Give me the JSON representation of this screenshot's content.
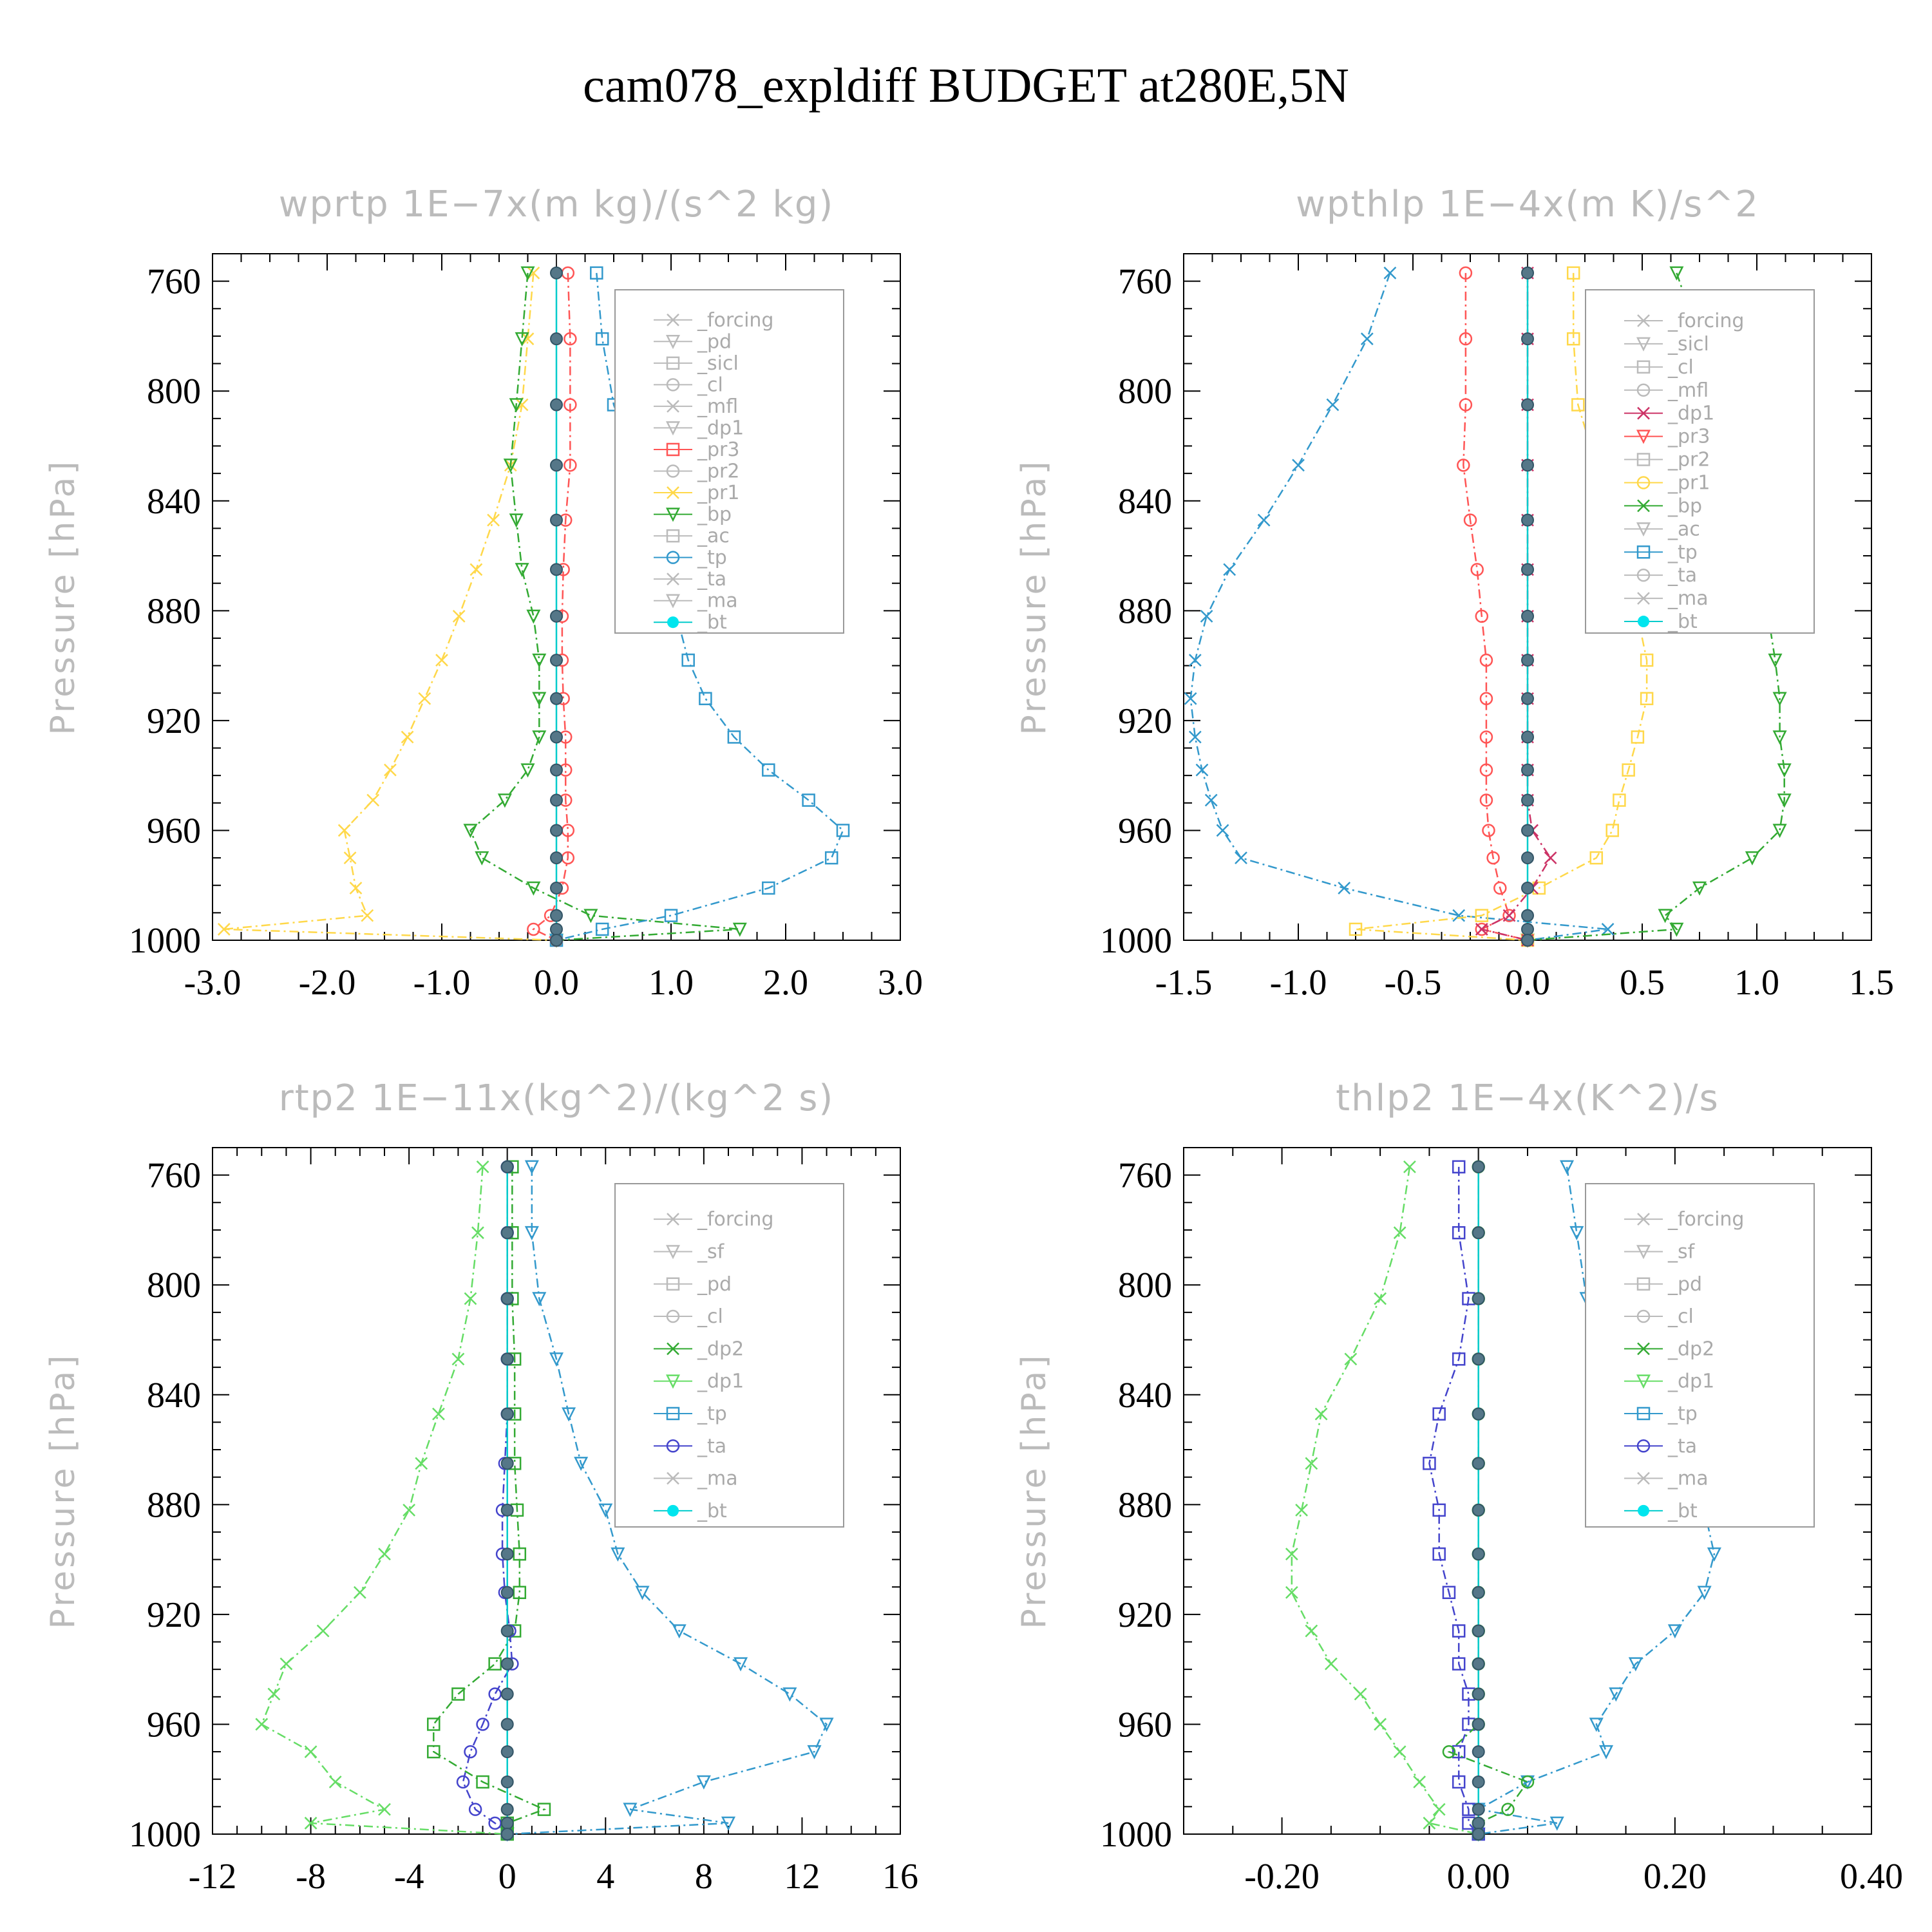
{
  "title": "cam078_expldiff  BUDGET at280E,5N",
  "chart_data": [
    {
      "type": "line",
      "title": "wprtp  1E−7x(m kg)/(s^2 kg)",
      "ylabel": "Pressure [hPa]",
      "xlim": [
        -3.0,
        3.0
      ],
      "ylim": [
        1000,
        750
      ],
      "xticks": [
        "-3.0",
        "-2.0",
        "-1.0",
        "0.0",
        "1.0",
        "2.0",
        "3.0"
      ],
      "yticks": [
        "760",
        "800",
        "840",
        "880",
        "920",
        "960",
        "1000"
      ],
      "levels": [
        757,
        781,
        805,
        827,
        847,
        865,
        882,
        898,
        912,
        926,
        938,
        949,
        960,
        970,
        981,
        991,
        996,
        1000
      ],
      "legend_names": [
        "_forcing",
        "_pd",
        "_sicl",
        "_cl",
        "_mfl",
        "_dp1",
        "_pr3",
        "_pr2",
        "_pr1",
        "_bp",
        "_ac",
        "_tp",
        "_ta",
        "_ma",
        "_bt"
      ],
      "series": [
        {
          "name": "_pr1",
          "color": "#ffd84a",
          "values": [
            -0.2,
            -0.25,
            -0.3,
            -0.4,
            -0.55,
            -0.7,
            -0.85,
            -1.0,
            -1.15,
            -1.3,
            -1.45,
            -1.6,
            -1.85,
            -1.8,
            -1.75,
            -1.65,
            -2.9,
            0.0
          ]
        },
        {
          "name": "_bp",
          "color": "#33aa33",
          "values": [
            -0.25,
            -0.3,
            -0.35,
            -0.4,
            -0.35,
            -0.3,
            -0.2,
            -0.15,
            -0.15,
            -0.15,
            -0.25,
            -0.45,
            -0.75,
            -0.65,
            -0.2,
            0.3,
            1.6,
            0.0
          ]
        },
        {
          "name": "_tp",
          "color": "#3399cc",
          "values": [
            0.35,
            0.4,
            0.5,
            0.7,
            0.85,
            1.0,
            1.05,
            1.15,
            1.3,
            1.55,
            1.85,
            2.2,
            2.5,
            2.4,
            1.85,
            1.0,
            0.4,
            0.0
          ]
        },
        {
          "name": "_pr3",
          "color": "#ff5555",
          "values": [
            0.1,
            0.12,
            0.12,
            0.12,
            0.08,
            0.06,
            0.05,
            0.05,
            0.06,
            0.08,
            0.08,
            0.08,
            0.1,
            0.1,
            0.05,
            -0.05,
            -0.2,
            0.0
          ]
        },
        {
          "name": "_bt",
          "color": "#00cccc",
          "values": [
            0,
            0,
            0,
            0,
            0,
            0,
            0,
            0,
            0,
            0,
            0,
            0,
            0,
            0,
            0,
            0,
            0,
            0
          ]
        }
      ]
    },
    {
      "type": "line",
      "title": "wpthlp  1E−4x(m K)/s^2",
      "ylabel": "Pressure [hPa]",
      "xlim": [
        -1.5,
        1.5
      ],
      "ylim": [
        1000,
        750
      ],
      "xticks": [
        "-1.5",
        "-1.0",
        "-0.5",
        "0.0",
        "0.5",
        "1.0",
        "1.5"
      ],
      "yticks": [
        "760",
        "800",
        "840",
        "880",
        "920",
        "960",
        "1000"
      ],
      "levels": [
        757,
        781,
        805,
        827,
        847,
        865,
        882,
        898,
        912,
        926,
        938,
        949,
        960,
        970,
        981,
        991,
        996,
        1000
      ],
      "legend_names": [
        "_forcing",
        "_sicl",
        "_cl",
        "_mfl",
        "_dp1",
        "_pr3",
        "_pr2",
        "_pr1",
        "_bp",
        "_ac",
        "_tp",
        "_ta",
        "_ma",
        "_bt"
      ],
      "series": [
        {
          "name": "_tp",
          "color": "#3399cc",
          "values": [
            -0.6,
            -0.7,
            -0.85,
            -1.0,
            -1.15,
            -1.3,
            -1.4,
            -1.45,
            -1.47,
            -1.45,
            -1.42,
            -1.38,
            -1.33,
            -1.25,
            -0.8,
            -0.3,
            0.35,
            0.0
          ]
        },
        {
          "name": "_bp",
          "color": "#33aa33",
          "values": [
            0.65,
            0.75,
            0.85,
            0.98,
            1.03,
            1.06,
            1.05,
            1.08,
            1.1,
            1.1,
            1.12,
            1.12,
            1.1,
            0.98,
            0.75,
            0.6,
            0.65,
            0.0
          ]
        },
        {
          "name": "_pr1",
          "color": "#ffd84a",
          "values": [
            0.2,
            0.2,
            0.22,
            0.3,
            0.37,
            0.43,
            0.48,
            0.52,
            0.52,
            0.48,
            0.44,
            0.4,
            0.37,
            0.3,
            0.05,
            -0.2,
            -0.75,
            0.0
          ]
        },
        {
          "name": "_pr3",
          "color": "#ff5555",
          "values": [
            -0.27,
            -0.27,
            -0.27,
            -0.28,
            -0.25,
            -0.22,
            -0.2,
            -0.18,
            -0.18,
            -0.18,
            -0.18,
            -0.18,
            -0.17,
            -0.15,
            -0.12,
            -0.08,
            -0.2,
            0.0
          ]
        },
        {
          "name": "_dp1",
          "color": "#cc3366",
          "values": [
            0,
            0,
            0,
            0,
            0,
            0,
            0,
            0,
            0,
            0,
            0,
            0,
            0.02,
            0.1,
            0.02,
            -0.08,
            -0.2,
            0.0
          ]
        },
        {
          "name": "_bt",
          "color": "#00cccc",
          "values": [
            0,
            0,
            0,
            0,
            0,
            0,
            0,
            0,
            0,
            0,
            0,
            0,
            0,
            0,
            0,
            0,
            0,
            0
          ]
        }
      ]
    },
    {
      "type": "line",
      "title": "rtp2  1E−11x(kg^2)/(kg^2 s)",
      "ylabel": "Pressure [hPa]",
      "xlim": [
        -12,
        16
      ],
      "ylim": [
        1000,
        750
      ],
      "xticks": [
        "-12",
        "-8",
        "-4",
        "0",
        "4",
        "8",
        "12",
        "16"
      ],
      "yticks": [
        "760",
        "800",
        "840",
        "880",
        "920",
        "960",
        "1000"
      ],
      "levels": [
        757,
        781,
        805,
        827,
        847,
        865,
        882,
        898,
        912,
        926,
        938,
        949,
        960,
        970,
        981,
        991,
        996,
        1000
      ],
      "legend_names": [
        "_forcing",
        "_sf",
        "_pd",
        "_cl",
        "_dp2",
        "_dp1",
        "_tp",
        "_ta",
        "_ma",
        "_bt"
      ],
      "series": [
        {
          "name": "_dp1",
          "color": "#66dd66",
          "values": [
            -1.0,
            -1.2,
            -1.5,
            -2.0,
            -2.8,
            -3.5,
            -4.0,
            -5.0,
            -6.0,
            -7.5,
            -9.0,
            -9.5,
            -10.0,
            -8.0,
            -7.0,
            -5.0,
            -8.0,
            0.0
          ]
        },
        {
          "name": "_tp",
          "color": "#3399cc",
          "values": [
            1.0,
            1.0,
            1.3,
            2.0,
            2.5,
            3.0,
            4.0,
            4.5,
            5.5,
            7.0,
            9.5,
            11.5,
            13.0,
            12.5,
            8.0,
            5.0,
            9.0,
            0.0
          ]
        },
        {
          "name": "_dp2",
          "color": "#33aa33",
          "values": [
            0.2,
            0.2,
            0.2,
            0.3,
            0.3,
            0.3,
            0.4,
            0.5,
            0.5,
            0.3,
            -0.5,
            -2.0,
            -3.0,
            -3.0,
            -1.0,
            1.5,
            0.0,
            0.0
          ]
        },
        {
          "name": "_ta",
          "color": "#4444cc",
          "values": [
            0,
            0,
            0,
            0,
            0,
            -0.1,
            -0.2,
            -0.2,
            -0.1,
            0.1,
            0.2,
            -0.5,
            -1.0,
            -1.5,
            -1.8,
            -1.3,
            -0.5,
            0.0
          ]
        },
        {
          "name": "_bt",
          "color": "#00cccc",
          "values": [
            0,
            0,
            0,
            0,
            0,
            0,
            0,
            0,
            0,
            0,
            0,
            0,
            0,
            0,
            0,
            0,
            0,
            0
          ]
        }
      ]
    },
    {
      "type": "line",
      "title": "thlp2  1E−4x(K^2)/s",
      "ylabel": "Pressure [hPa]",
      "xlim": [
        -0.3,
        0.4
      ],
      "ylim": [
        1000,
        750
      ],
      "xticks": [
        "-0.20",
        "0.00",
        "0.20",
        "0.40"
      ],
      "xtickvals": [
        -0.2,
        0.0,
        0.2,
        0.4
      ],
      "yticks": [
        "760",
        "800",
        "840",
        "880",
        "920",
        "960",
        "1000"
      ],
      "levels": [
        757,
        781,
        805,
        827,
        847,
        865,
        882,
        898,
        912,
        926,
        938,
        949,
        960,
        970,
        981,
        991,
        996,
        1000
      ],
      "legend_names": [
        "_forcing",
        "_sf",
        "_pd",
        "_cl",
        "_dp2",
        "_dp1",
        "_tp",
        "_ta",
        "_ma",
        "_bt"
      ],
      "series": [
        {
          "name": "_dp1",
          "color": "#66dd66",
          "values": [
            -0.07,
            -0.08,
            -0.1,
            -0.13,
            -0.16,
            -0.17,
            -0.18,
            -0.19,
            -0.19,
            -0.17,
            -0.15,
            -0.12,
            -0.1,
            -0.08,
            -0.06,
            -0.04,
            -0.05,
            0.0
          ]
        },
        {
          "name": "_tp",
          "color": "#3399cc",
          "values": [
            0.09,
            0.1,
            0.11,
            0.14,
            0.19,
            0.22,
            0.23,
            0.24,
            0.23,
            0.2,
            0.16,
            0.14,
            0.12,
            0.13,
            0.05,
            0.0,
            0.08,
            0.0
          ]
        },
        {
          "name": "_ta",
          "color": "#4444cc",
          "values": [
            -0.02,
            -0.02,
            -0.01,
            -0.02,
            -0.04,
            -0.05,
            -0.04,
            -0.04,
            -0.03,
            -0.02,
            -0.02,
            -0.01,
            -0.01,
            -0.02,
            -0.02,
            -0.01,
            -0.01,
            0.0
          ]
        },
        {
          "name": "_dp2",
          "color": "#33aa33",
          "values": [
            0.0,
            0.0,
            0.0,
            0.0,
            0.0,
            0.0,
            0.0,
            0.0,
            0.0,
            0.0,
            0.0,
            0.0,
            0.0,
            -0.03,
            0.05,
            0.03,
            0.0,
            0.0
          ]
        },
        {
          "name": "_bt",
          "color": "#00cccc",
          "values": [
            0,
            0,
            0,
            0,
            0,
            0,
            0,
            0,
            0,
            0,
            0,
            0,
            0,
            0,
            0,
            0,
            0,
            0
          ]
        }
      ]
    }
  ]
}
